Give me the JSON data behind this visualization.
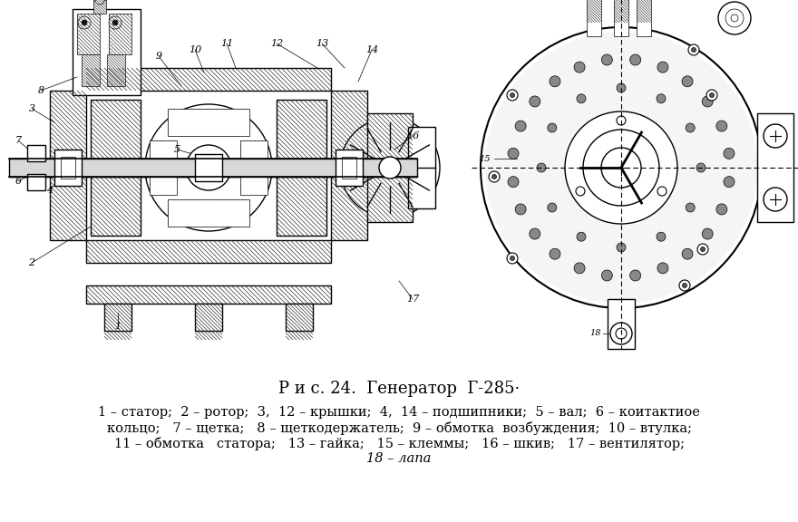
{
  "title": "Р и с. 24.  Генератор  Г-285·",
  "caption_line1": "1 – статор;  2 – ротор;  3,  12 – крышки;  4,  14 – подшипники;  5 – вал;  6 – коитактиое",
  "caption_line2": "кольцо;   7 – щетка;   8 – щеткодержатель;  9 – обмотка  возбуждения;  10 – втулка;",
  "caption_line3": "11 – обмотка   статора;   13 – гайка;   15 – клеммы;   16 – шкив;   17 – вентилятор;",
  "caption_line4": "18 – лапа",
  "bg_color": "#ffffff",
  "text_color": "#000000",
  "title_fontsize": 13,
  "caption_fontsize": 10.5
}
